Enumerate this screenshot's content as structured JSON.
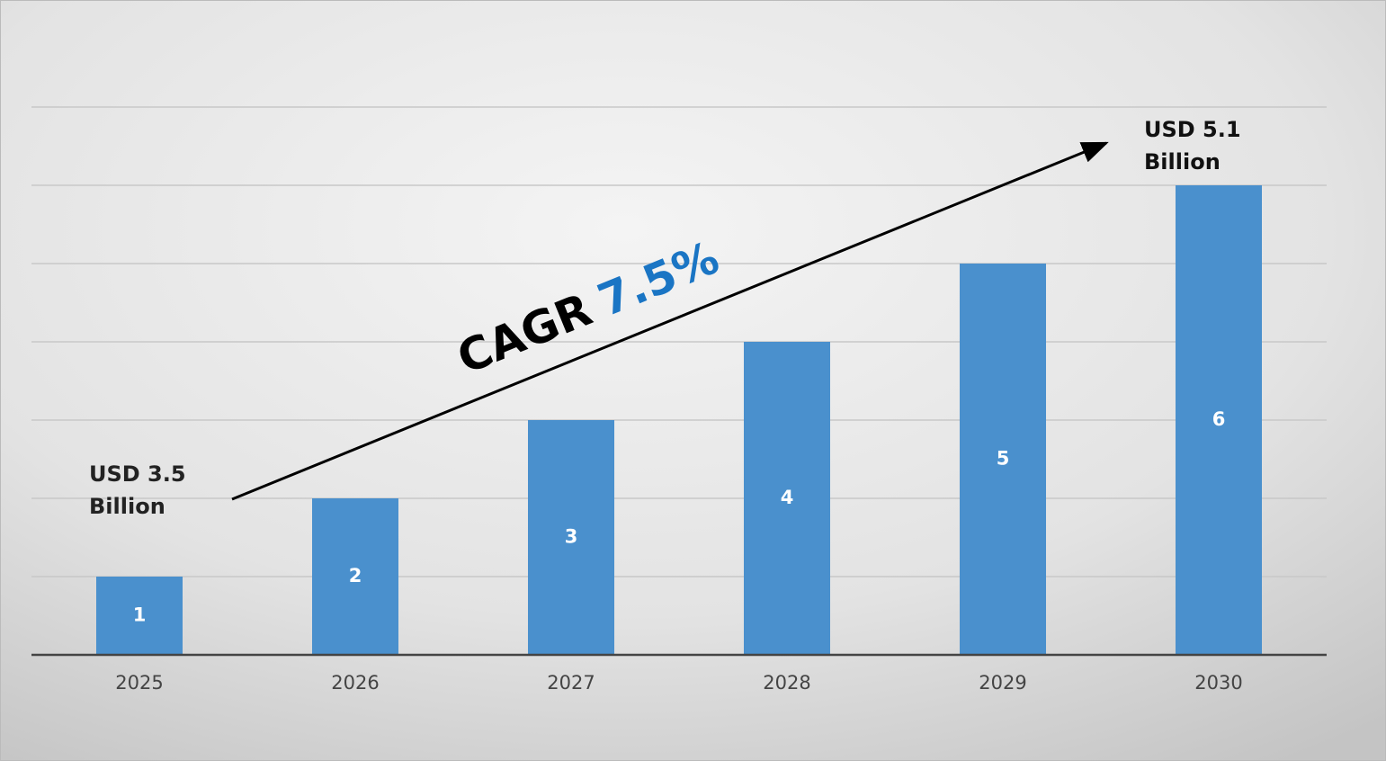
{
  "chart_data": {
    "type": "bar",
    "categories": [
      "2025",
      "2026",
      "2027",
      "2028",
      "2029",
      "2030"
    ],
    "values": [
      1,
      2,
      3,
      4,
      5,
      6
    ],
    "color": "#4a90cd",
    "ylim": [
      0,
      7
    ],
    "yticks": [
      0,
      1,
      2,
      3,
      4,
      5,
      6,
      7
    ],
    "grid": true,
    "annotations": [
      [
        "USD 3.5",
        "Billion"
      ],
      [
        "USD 5.1",
        "Billion"
      ]
    ],
    "cagr_label": "CAGR",
    "cagr_value": "7.5%"
  }
}
